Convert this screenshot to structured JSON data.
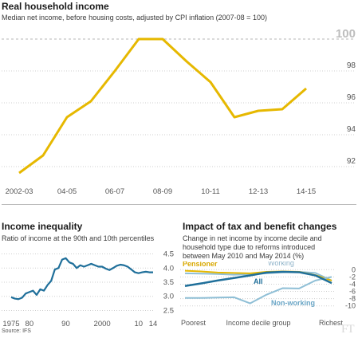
{
  "top": {
    "title": "Real household income",
    "subtitle": "Median net income, before housing costs, adjusted by CPI inflation (2007-08 = 100)"
  },
  "left": {
    "title": "Income inequality",
    "subtitle": "Ratio of income at the 90th and 10th percentiles"
  },
  "right": {
    "title": "Impact of tax and benefit changes",
    "subtitle_lines": [
      "Change in net income by income decile and",
      "household type due to reforms introduced",
      "between May 2010 and May 2014 (%)"
    ]
  },
  "footer": {
    "source": "Source: IFS",
    "logo": "FT"
  },
  "colors": {
    "gold": "#e6b800",
    "blue": "#1f6f9a",
    "light_blue": "#8fbfd6",
    "grid": "#cfcfcf",
    "axis_text": "#555555"
  },
  "chart_data": [
    {
      "id": "real-household-income",
      "type": "line",
      "title": "Real household income",
      "subtitle": "Median net income, before housing costs, adjusted by CPI inflation (2007-08 = 100)",
      "x": [
        "2002-03",
        "2003-04",
        "2004-05",
        "2005-06",
        "2006-07",
        "2007-08",
        "2008-09",
        "2009-10",
        "2010-11",
        "2011-12",
        "2012-13",
        "2013-14",
        "2014-15"
      ],
      "x_tick_labels": [
        "2002-03",
        "04-05",
        "06-07",
        "08-09",
        "10-11",
        "12-13",
        "14-15"
      ],
      "values": [
        91.6,
        92.7,
        95.1,
        96.1,
        98.0,
        100.0,
        100.0,
        98.6,
        97.3,
        95.1,
        95.5,
        95.6,
        96.9
      ],
      "y_ticks": [
        92,
        94,
        96,
        98,
        100
      ],
      "ylim": [
        91.2,
        100.4
      ],
      "grid": true,
      "series_color": "#e6b800"
    },
    {
      "id": "income-inequality",
      "type": "line",
      "title": "Income inequality",
      "subtitle": "Ratio of income at the 90th and 10th percentiles",
      "x": [
        1975,
        1976,
        1977,
        1978,
        1979,
        1980,
        1981,
        1982,
        1983,
        1984,
        1985,
        1986,
        1987,
        1988,
        1989,
        1990,
        1991,
        1992,
        1993,
        1994,
        1995,
        1996,
        1997,
        1998,
        1999,
        2000,
        2001,
        2002,
        2003,
        2004,
        2005,
        2006,
        2007,
        2008,
        2009,
        2010,
        2011,
        2012,
        2013,
        2014
      ],
      "values": [
        2.97,
        2.92,
        2.9,
        2.95,
        3.1,
        3.15,
        3.2,
        3.05,
        3.25,
        3.2,
        3.4,
        3.55,
        3.95,
        4.0,
        4.3,
        4.35,
        4.2,
        4.15,
        4.0,
        4.1,
        4.05,
        4.1,
        4.15,
        4.1,
        4.05,
        4.05,
        3.98,
        3.93,
        4.0,
        4.08,
        4.12,
        4.1,
        4.05,
        3.95,
        3.85,
        3.82,
        3.85,
        3.87,
        3.85,
        3.85
      ],
      "x_tick_labels": [
        "1975",
        "80",
        "90",
        "2000",
        "10",
        "14"
      ],
      "y_ticks": [
        2.5,
        3.0,
        3.5,
        4.0,
        4.5
      ],
      "y_tick_labels": [
        "2.5",
        "3.0",
        "3.5",
        "4.0",
        "4.5"
      ],
      "xlim": [
        1975,
        2014
      ],
      "ylim": [
        2.4,
        4.6
      ],
      "grid": true,
      "series_color": "#1f6f9a"
    },
    {
      "id": "tax-benefit-impact",
      "type": "line",
      "title": "Impact of tax and benefit changes",
      "x": [
        1,
        2,
        3,
        4,
        5,
        6,
        7,
        8,
        9,
        10
      ],
      "x_labels": [
        "Poorest",
        "Income decile group",
        "Richest"
      ],
      "y_ticks": [
        0,
        -2,
        -4,
        -6,
        -8,
        -10
      ],
      "y_tick_labels": [
        "0",
        "-2",
        "-4",
        "-6",
        "-8",
        "-10"
      ],
      "ylim": [
        -10.5,
        0.5
      ],
      "series": [
        {
          "name": "Pensioner",
          "values": [
            -0.3,
            -0.5,
            -0.8,
            -0.9,
            -1.0,
            -0.6,
            -0.5,
            -0.6,
            -1.5,
            -3.0
          ],
          "color": "#e6b800"
        },
        {
          "name": "Working",
          "values": [
            -1.0,
            -1.1,
            -1.2,
            -1.4,
            -1.3,
            -1.0,
            -0.7,
            -0.6,
            -0.9,
            -3.0
          ],
          "color": "#8fbfd6"
        },
        {
          "name": "All",
          "values": [
            -4.5,
            -3.8,
            -3.0,
            -2.3,
            -1.6,
            -0.8,
            -0.6,
            -0.7,
            -1.6,
            -3.7
          ],
          "color": "#1f6f9a"
        },
        {
          "name": "Non-working",
          "values": [
            -7.8,
            -7.8,
            -7.7,
            -7.6,
            -9.3,
            -6.9,
            -5.1,
            -5.2,
            -3.0,
            -2.0
          ],
          "color": "#8fbfd6"
        }
      ]
    }
  ]
}
